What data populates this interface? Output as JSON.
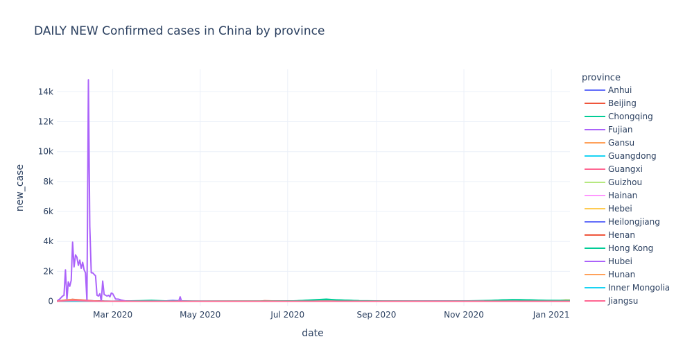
{
  "chart_data": {
    "type": "line",
    "title": "DAILY NEW Confirmed cases in China by province",
    "xlabel": "date",
    "ylabel": "new_case",
    "x_range": [
      "2020-01-22",
      "2021-01-14"
    ],
    "ylim": [
      -300,
      15500
    ],
    "grid": true,
    "legend_placement": "right",
    "legend_title": "province",
    "x_ticks": [
      {
        "date": "2020-03-01",
        "label": "Mar 2020"
      },
      {
        "date": "2020-05-01",
        "label": "May 2020"
      },
      {
        "date": "2020-07-01",
        "label": "Jul 2020"
      },
      {
        "date": "2020-09-01",
        "label": "Sep 2020"
      },
      {
        "date": "2020-11-01",
        "label": "Nov 2020"
      },
      {
        "date": "2021-01-01",
        "label": "Jan 2021"
      }
    ],
    "y_ticks": [
      {
        "value": 0,
        "label": "0"
      },
      {
        "value": 2000,
        "label": "2k"
      },
      {
        "value": 4000,
        "label": "4k"
      },
      {
        "value": 6000,
        "label": "6k"
      },
      {
        "value": 8000,
        "label": "8k"
      },
      {
        "value": 10000,
        "label": "10k"
      },
      {
        "value": 12000,
        "label": "12k"
      },
      {
        "value": 14000,
        "label": "14k"
      }
    ],
    "series": [
      {
        "name": "Anhui",
        "color": "#636efa",
        "points": [
          [
            "2020-01-22",
            1
          ],
          [
            "2020-01-26",
            40
          ],
          [
            "2020-01-30",
            80
          ],
          [
            "2020-02-03",
            90
          ],
          [
            "2020-02-08",
            60
          ],
          [
            "2020-02-14",
            25
          ],
          [
            "2020-02-20",
            5
          ],
          [
            "2020-03-01",
            0
          ],
          [
            "2021-01-14",
            0
          ]
        ]
      },
      {
        "name": "Beijing",
        "color": "#EF553B",
        "points": [
          [
            "2020-01-22",
            5
          ],
          [
            "2020-01-28",
            20
          ],
          [
            "2020-02-05",
            25
          ],
          [
            "2020-02-15",
            10
          ],
          [
            "2020-03-01",
            3
          ],
          [
            "2020-06-12",
            10
          ],
          [
            "2020-06-15",
            35
          ],
          [
            "2020-06-20",
            25
          ],
          [
            "2020-06-28",
            10
          ],
          [
            "2020-07-05",
            1
          ],
          [
            "2021-01-14",
            1
          ]
        ]
      },
      {
        "name": "Chongqing",
        "color": "#00cc96",
        "points": [
          [
            "2020-01-22",
            5
          ],
          [
            "2020-01-28",
            30
          ],
          [
            "2020-02-02",
            40
          ],
          [
            "2020-02-10",
            30
          ],
          [
            "2020-02-18",
            10
          ],
          [
            "2020-03-01",
            1
          ],
          [
            "2020-03-20",
            15
          ],
          [
            "2020-04-05",
            10
          ],
          [
            "2020-05-01",
            5
          ],
          [
            "2020-06-10",
            10
          ],
          [
            "2020-07-05",
            25
          ],
          [
            "2020-07-15",
            55
          ],
          [
            "2020-07-25",
            100
          ],
          [
            "2020-08-05",
            90
          ],
          [
            "2020-08-20",
            40
          ],
          [
            "2020-09-05",
            20
          ],
          [
            "2020-10-01",
            15
          ],
          [
            "2020-11-01",
            20
          ],
          [
            "2020-11-20",
            50
          ],
          [
            "2020-12-01",
            95
          ],
          [
            "2020-12-10",
            110
          ],
          [
            "2020-12-20",
            80
          ],
          [
            "2021-01-01",
            40
          ],
          [
            "2021-01-14",
            30
          ]
        ]
      },
      {
        "name": "Fujian",
        "color": "#ab63fa",
        "points": [
          [
            "2020-01-22",
            3
          ],
          [
            "2020-01-28",
            20
          ],
          [
            "2020-02-05",
            15
          ],
          [
            "2020-02-15",
            5
          ],
          [
            "2020-03-01",
            0
          ],
          [
            "2021-01-14",
            0
          ]
        ]
      },
      {
        "name": "Gansu",
        "color": "#FFA15A",
        "points": [
          [
            "2020-01-22",
            1
          ],
          [
            "2020-01-30",
            10
          ],
          [
            "2020-02-08",
            8
          ],
          [
            "2020-02-20",
            2
          ],
          [
            "2020-03-01",
            0
          ],
          [
            "2021-01-14",
            0
          ]
        ]
      },
      {
        "name": "Guangdong",
        "color": "#19d3f3",
        "points": [
          [
            "2020-01-22",
            10
          ],
          [
            "2020-01-28",
            90
          ],
          [
            "2020-02-02",
            120
          ],
          [
            "2020-02-10",
            60
          ],
          [
            "2020-02-20",
            15
          ],
          [
            "2020-03-01",
            5
          ],
          [
            "2020-03-20",
            25
          ],
          [
            "2020-04-10",
            10
          ],
          [
            "2020-06-01",
            5
          ],
          [
            "2020-09-01",
            10
          ],
          [
            "2020-12-01",
            15
          ],
          [
            "2021-01-14",
            10
          ]
        ]
      },
      {
        "name": "Guangxi",
        "color": "#FF6692",
        "points": [
          [
            "2020-01-22",
            2
          ],
          [
            "2020-01-30",
            20
          ],
          [
            "2020-02-08",
            15
          ],
          [
            "2020-02-18",
            3
          ],
          [
            "2020-03-01",
            0
          ],
          [
            "2021-01-14",
            0
          ]
        ]
      },
      {
        "name": "Guizhou",
        "color": "#B6E880",
        "points": [
          [
            "2020-01-22",
            1
          ],
          [
            "2020-01-30",
            10
          ],
          [
            "2020-02-08",
            8
          ],
          [
            "2020-02-18",
            2
          ],
          [
            "2020-03-01",
            0
          ],
          [
            "2021-01-14",
            0
          ]
        ]
      },
      {
        "name": "Hainan",
        "color": "#FF97FF",
        "points": [
          [
            "2020-01-22",
            2
          ],
          [
            "2020-01-30",
            15
          ],
          [
            "2020-02-08",
            10
          ],
          [
            "2020-02-18",
            2
          ],
          [
            "2020-03-01",
            0
          ],
          [
            "2021-01-14",
            0
          ]
        ]
      },
      {
        "name": "Hebei",
        "color": "#FECB52",
        "points": [
          [
            "2020-01-22",
            1
          ],
          [
            "2020-01-30",
            20
          ],
          [
            "2020-02-08",
            15
          ],
          [
            "2020-02-18",
            3
          ],
          [
            "2020-03-01",
            0
          ],
          [
            "2021-01-06",
            20
          ],
          [
            "2021-01-08",
            60
          ],
          [
            "2021-01-11",
            90
          ],
          [
            "2021-01-14",
            80
          ]
        ]
      },
      {
        "name": "Heilongjiang",
        "color": "#636efa",
        "points": [
          [
            "2020-01-22",
            1
          ],
          [
            "2020-01-30",
            30
          ],
          [
            "2020-02-06",
            60
          ],
          [
            "2020-02-14",
            35
          ],
          [
            "2020-02-22",
            5
          ],
          [
            "2020-03-01",
            0
          ],
          [
            "2020-04-08",
            30
          ],
          [
            "2020-04-12",
            50
          ],
          [
            "2020-04-18",
            20
          ],
          [
            "2020-04-25",
            2
          ],
          [
            "2020-05-01",
            0
          ],
          [
            "2021-01-10",
            15
          ],
          [
            "2021-01-14",
            40
          ]
        ]
      },
      {
        "name": "Henan",
        "color": "#EF553B",
        "points": [
          [
            "2020-01-22",
            2
          ],
          [
            "2020-01-28",
            80
          ],
          [
            "2020-02-02",
            130
          ],
          [
            "2020-02-08",
            90
          ],
          [
            "2020-02-16",
            30
          ],
          [
            "2020-02-24",
            5
          ],
          [
            "2020-03-01",
            0
          ],
          [
            "2021-01-14",
            0
          ]
        ]
      },
      {
        "name": "Hong Kong",
        "color": "#00cc96",
        "points": [
          [
            "2020-01-22",
            0
          ],
          [
            "2020-02-15",
            5
          ],
          [
            "2020-03-01",
            3
          ],
          [
            "2020-03-20",
            40
          ],
          [
            "2020-03-28",
            60
          ],
          [
            "2020-04-08",
            20
          ],
          [
            "2020-05-01",
            1
          ],
          [
            "2020-06-20",
            5
          ],
          [
            "2020-07-08",
            30
          ],
          [
            "2020-07-20",
            100
          ],
          [
            "2020-07-28",
            140
          ],
          [
            "2020-08-05",
            90
          ],
          [
            "2020-08-20",
            30
          ],
          [
            "2020-09-05",
            10
          ],
          [
            "2020-10-10",
            5
          ],
          [
            "2020-11-15",
            20
          ],
          [
            "2020-11-28",
            90
          ],
          [
            "2020-12-05",
            110
          ],
          [
            "2020-12-15",
            80
          ],
          [
            "2020-12-28",
            60
          ],
          [
            "2021-01-14",
            50
          ]
        ]
      },
      {
        "name": "Hubei",
        "color": "#ab63fa",
        "points": [
          [
            "2020-01-22",
            0
          ],
          [
            "2020-01-24",
            150
          ],
          [
            "2020-01-26",
            350
          ],
          [
            "2020-01-27",
            400
          ],
          [
            "2020-01-28",
            2100
          ],
          [
            "2020-01-29",
            100
          ],
          [
            "2020-01-30",
            1300
          ],
          [
            "2020-01-31",
            1000
          ],
          [
            "2020-02-01",
            1400
          ],
          [
            "2020-02-02",
            3950
          ],
          [
            "2020-02-03",
            2300
          ],
          [
            "2020-02-04",
            3100
          ],
          [
            "2020-02-05",
            2950
          ],
          [
            "2020-02-06",
            2400
          ],
          [
            "2020-02-07",
            2750
          ],
          [
            "2020-02-08",
            2200
          ],
          [
            "2020-02-09",
            2600
          ],
          [
            "2020-02-10",
            2100
          ],
          [
            "2020-02-11",
            1900
          ],
          [
            "2020-02-12",
            0
          ],
          [
            "2020-02-13",
            14800
          ],
          [
            "2020-02-14",
            5000
          ],
          [
            "2020-02-15",
            1900
          ],
          [
            "2020-02-16",
            1900
          ],
          [
            "2020-02-17",
            1800
          ],
          [
            "2020-02-18",
            1700
          ],
          [
            "2020-02-19",
            400
          ],
          [
            "2020-02-20",
            350
          ],
          [
            "2020-02-21",
            500
          ],
          [
            "2020-02-22",
            0
          ],
          [
            "2020-02-23",
            1350
          ],
          [
            "2020-02-24",
            450
          ],
          [
            "2020-02-25",
            400
          ],
          [
            "2020-02-26",
            350
          ],
          [
            "2020-02-27",
            400
          ],
          [
            "2020-02-28",
            300
          ],
          [
            "2020-02-29",
            550
          ],
          [
            "2020-03-01",
            500
          ],
          [
            "2020-03-03",
            150
          ],
          [
            "2020-03-05",
            140
          ],
          [
            "2020-03-07",
            80
          ],
          [
            "2020-03-10",
            20
          ],
          [
            "2020-03-15",
            5
          ],
          [
            "2020-03-20",
            0
          ],
          [
            "2020-04-16",
            0
          ],
          [
            "2020-04-17",
            300
          ],
          [
            "2020-04-18",
            0
          ],
          [
            "2021-01-14",
            0
          ]
        ]
      },
      {
        "name": "Hunan",
        "color": "#FFA15A",
        "points": [
          [
            "2020-01-22",
            2
          ],
          [
            "2020-01-26",
            60
          ],
          [
            "2020-01-31",
            110
          ],
          [
            "2020-02-05",
            80
          ],
          [
            "2020-02-12",
            30
          ],
          [
            "2020-02-20",
            5
          ],
          [
            "2020-03-01",
            0
          ],
          [
            "2021-01-14",
            0
          ]
        ]
      },
      {
        "name": "Inner Mongolia",
        "color": "#19d3f3",
        "points": [
          [
            "2020-01-22",
            1
          ],
          [
            "2020-01-30",
            8
          ],
          [
            "2020-02-08",
            6
          ],
          [
            "2020-02-18",
            1
          ],
          [
            "2020-03-01",
            0
          ],
          [
            "2020-04-05",
            10
          ],
          [
            "2020-04-12",
            5
          ],
          [
            "2020-04-20",
            0
          ],
          [
            "2021-01-14",
            0
          ]
        ]
      },
      {
        "name": "Jiangsu",
        "color": "#FF6692",
        "points": [
          [
            "2020-01-22",
            1
          ],
          [
            "2020-01-28",
            40
          ],
          [
            "2020-02-03",
            60
          ],
          [
            "2020-02-10",
            30
          ],
          [
            "2020-02-18",
            5
          ],
          [
            "2020-03-01",
            0
          ],
          [
            "2021-01-14",
            0
          ]
        ]
      }
    ]
  }
}
